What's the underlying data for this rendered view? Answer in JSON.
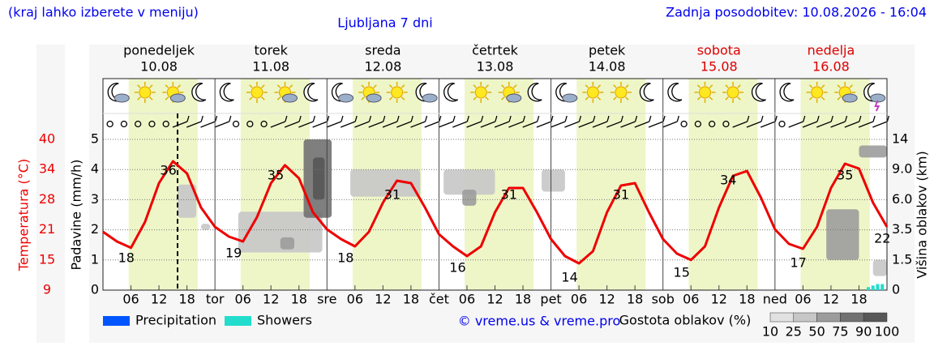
{
  "header": {
    "left": "(kraj lahko izberete v meniju)",
    "title": "Ljubljana 7 dni",
    "right": "Zadnja posodobitev: 10.08.2026 - 16:04"
  },
  "chart_data": {
    "type": "line",
    "days": [
      {
        "name": "ponedeljek",
        "date": "10.08",
        "color": "#000000"
      },
      {
        "name": "torek",
        "date": "11.08",
        "color": "#000000"
      },
      {
        "name": "sreda",
        "date": "12.08",
        "color": "#000000"
      },
      {
        "name": "četrtek",
        "date": "13.08",
        "color": "#000000"
      },
      {
        "name": "petek",
        "date": "14.08",
        "color": "#000000"
      },
      {
        "name": "sobota",
        "date": "15.08",
        "color": "#dd0000"
      },
      {
        "name": "nedelja",
        "date": "16.08",
        "color": "#dd0000"
      }
    ],
    "icons": [
      "moon-cloud",
      "sun",
      "sun-cloud",
      "moon",
      "moon",
      "sun",
      "sun-cloud",
      "moon",
      "moon-cloud",
      "sun-cloud",
      "sun",
      "moon-cloud",
      "moon",
      "sun",
      "sun-cloud",
      "moon",
      "moon-cloud",
      "sun",
      "sun",
      "moon",
      "moon",
      "sun",
      "sun",
      "moon",
      "moon",
      "sun",
      "sun-cloud",
      "storm"
    ],
    "xlim": [
      0,
      168
    ],
    "xticks": [
      {
        "value": 6,
        "label": "06"
      },
      {
        "value": 12,
        "label": "12"
      },
      {
        "value": 18,
        "label": "18"
      },
      {
        "value": 24,
        "label": "tor"
      },
      {
        "value": 30,
        "label": "06"
      },
      {
        "value": 36,
        "label": "12"
      },
      {
        "value": 42,
        "label": "18"
      },
      {
        "value": 48,
        "label": "sre"
      },
      {
        "value": 54,
        "label": "06"
      },
      {
        "value": 60,
        "label": "12"
      },
      {
        "value": 66,
        "label": "18"
      },
      {
        "value": 72,
        "label": "čet"
      },
      {
        "value": 78,
        "label": "06"
      },
      {
        "value": 84,
        "label": "12"
      },
      {
        "value": 90,
        "label": "18"
      },
      {
        "value": 96,
        "label": "pet"
      },
      {
        "value": 102,
        "label": "06"
      },
      {
        "value": 108,
        "label": "12"
      },
      {
        "value": 114,
        "label": "18"
      },
      {
        "value": 120,
        "label": "sob"
      },
      {
        "value": 126,
        "label": "06"
      },
      {
        "value": 132,
        "label": "12"
      },
      {
        "value": 138,
        "label": "18"
      },
      {
        "value": 144,
        "label": "ned"
      },
      {
        "value": 150,
        "label": "06"
      },
      {
        "value": 156,
        "label": "12"
      },
      {
        "value": 162,
        "label": "18"
      }
    ],
    "ylabel": "Padavine (mm/h)",
    "ylim": [
      0,
      5
    ],
    "yticks": [
      0,
      1,
      2,
      3,
      4,
      5
    ],
    "grid": true,
    "temperature": {
      "label": "Temperatura (°C)",
      "color": "#ee0000",
      "ylim": [
        9,
        40
      ],
      "yticks": [
        9,
        {
          "value": 15.2,
          "label": "15"
        },
        {
          "value": 21.4,
          "label": "21"
        },
        {
          "value": 27.6,
          "label": "28"
        },
        {
          "value": 33.8,
          "label": "34"
        },
        40
      ],
      "x": [
        0,
        3,
        6,
        9,
        12,
        15,
        18,
        21,
        24,
        27,
        30,
        33,
        36,
        39,
        42,
        45,
        48,
        51,
        54,
        57,
        60,
        63,
        66,
        69,
        72,
        75,
        78,
        81,
        84,
        87,
        90,
        93,
        96,
        99,
        102,
        105,
        108,
        111,
        114,
        117,
        120,
        123,
        126,
        129,
        132,
        135,
        138,
        141,
        144,
        147,
        150,
        153,
        156,
        159,
        162,
        165,
        168
      ],
      "values": [
        21,
        19,
        17.7,
        23,
        31,
        35.5,
        33,
        26,
        22,
        20,
        19,
        24,
        31,
        34.7,
        32,
        25,
        21.5,
        19.5,
        18,
        21,
        27,
        31.5,
        31,
        26,
        20.5,
        18,
        16,
        18,
        25,
        30,
        30,
        25,
        19.5,
        16,
        14.5,
        17,
        25,
        30.5,
        31,
        25,
        19.5,
        16.5,
        15.2,
        18,
        26,
        32.5,
        33.5,
        28,
        21.5,
        18.5,
        17.5,
        22,
        30,
        35,
        34,
        27,
        22
      ],
      "extremes": {
        "x": [
          5,
          14,
          28,
          37,
          52,
          62,
          76,
          87,
          100,
          111,
          124,
          134,
          149,
          159,
          167
        ],
        "values": [
          18,
          36,
          19,
          35,
          18,
          31,
          16,
          31,
          14,
          31,
          15,
          34,
          17,
          35,
          22
        ]
      }
    },
    "y2label": "Višina oblakov (km)",
    "y2lim": [
      0,
      14
    ],
    "y2ticks": [
      0,
      1.5,
      3.5,
      {
        "value": 6,
        "label": "6.0"
      },
      {
        "value": 9,
        "label": "9.0"
      },
      14
    ],
    "series": [
      {
        "name": "Precipitation",
        "color": "#0055ff",
        "x": [],
        "values": []
      },
      {
        "name": "Showers",
        "color": "#22ddcc",
        "x": [
          164,
          165,
          166,
          167
        ],
        "values": [
          0.1,
          0.15,
          0.2,
          0.2
        ]
      }
    ],
    "clouds": [
      {
        "x": [
          16,
          20
        ],
        "km": [
          4.5,
          7.5
        ],
        "density": 25
      },
      {
        "x": [
          21,
          23
        ],
        "km": [
          3.5,
          4
        ],
        "density": 25
      },
      {
        "x": [
          29,
          47
        ],
        "km": [
          2,
          5
        ],
        "density": 25
      },
      {
        "x": [
          38,
          41
        ],
        "km": [
          2.2,
          3
        ],
        "density": 50
      },
      {
        "x": [
          43,
          49
        ],
        "km": [
          4.5,
          14
        ],
        "density": 75
      },
      {
        "x": [
          45,
          47.5
        ],
        "km": [
          6,
          11
        ],
        "density": 90
      },
      {
        "x": [
          53,
          68
        ],
        "km": [
          6.3,
          9
        ],
        "density": 25
      },
      {
        "x": [
          73,
          84
        ],
        "km": [
          6.5,
          9
        ],
        "density": 25
      },
      {
        "x": [
          77,
          80
        ],
        "km": [
          5.5,
          7
        ],
        "density": 50
      },
      {
        "x": [
          94,
          99
        ],
        "km": [
          6.8,
          9
        ],
        "density": 25
      },
      {
        "x": [
          155,
          162
        ],
        "km": [
          1.5,
          5.2
        ],
        "density": 50
      },
      {
        "x": [
          162,
          168
        ],
        "km": [
          11,
          13
        ],
        "density": 50
      },
      {
        "x": [
          165,
          168
        ],
        "km": [
          0.7,
          1.5
        ],
        "density": 25
      }
    ],
    "density_legend": {
      "title": "Gostota oblakov (%)",
      "ticks": [
        10,
        25,
        50,
        75,
        90,
        100
      ]
    },
    "credit": "© vreme.us & vreme.pro"
  }
}
